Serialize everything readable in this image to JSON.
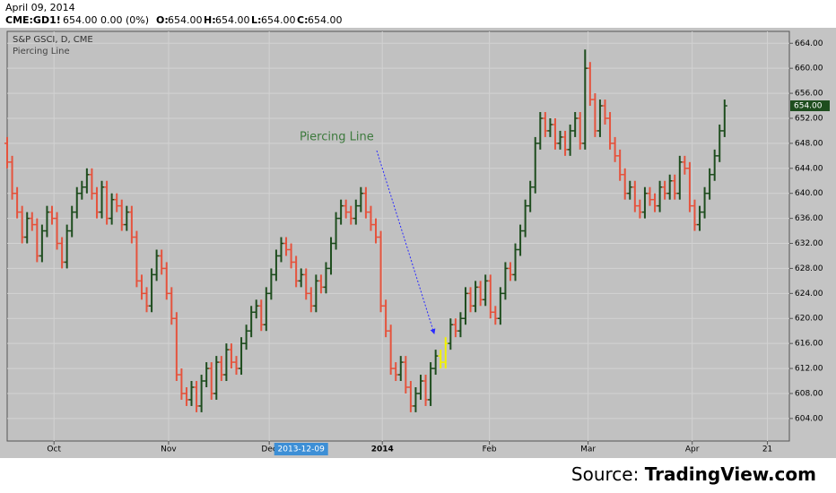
{
  "header": {
    "date": "April 09, 2014",
    "symbol": "CME:GD1!",
    "quote": "654.00 0.00 (0%)",
    "o_label": "O:",
    "o": "654.00",
    "h_label": "H:",
    "h": "654.00",
    "l_label": "L:",
    "l": "654.00",
    "c_label": "C:",
    "c": "654.00"
  },
  "chart_data": {
    "type": "ohlc",
    "title": "S&P GSCI, D, CME",
    "subtitle": "Piercing Line",
    "annotation": "Piercing Line",
    "up_color": "#1e4d1e",
    "down_color": "#e5533d",
    "highlight": {
      "color": "#f2f200",
      "indices": [
        87,
        88
      ]
    },
    "grid": true,
    "xlim": [
      0,
      157
    ],
    "xticks": [
      {
        "value": 9.4,
        "label": "Oct"
      },
      {
        "value": 32.4,
        "label": "Nov"
      },
      {
        "value": 52.6,
        "label": "Dec"
      },
      {
        "value": 75.3,
        "label": "2014"
      },
      {
        "value": 96.8,
        "label": "Feb"
      },
      {
        "value": 116.6,
        "label": "Mar"
      },
      {
        "value": 137.5,
        "label": "Apr"
      },
      {
        "value": 152.6,
        "label": "21"
      }
    ],
    "crosshair": {
      "value": 59,
      "label": "2013-12-09"
    },
    "ylim": [
      600.4,
      665.9
    ],
    "yticks": [
      {
        "value": 604,
        "label": "604.00"
      },
      {
        "value": 608,
        "label": "608.00"
      },
      {
        "value": 612,
        "label": "612.00"
      },
      {
        "value": 616,
        "label": "616.00"
      },
      {
        "value": 620,
        "label": "620.00"
      },
      {
        "value": 624,
        "label": "624.00"
      },
      {
        "value": 628,
        "label": "628.00"
      },
      {
        "value": 632,
        "label": "632.00"
      },
      {
        "value": 636,
        "label": "636.00"
      },
      {
        "value": 640,
        "label": "640.00"
      },
      {
        "value": 644,
        "label": "644.00"
      },
      {
        "value": 648,
        "label": "648.00"
      },
      {
        "value": 652,
        "label": "652.00"
      },
      {
        "value": 656,
        "label": "656.00"
      },
      {
        "value": 660,
        "label": "660.00"
      },
      {
        "value": 664,
        "label": "664.00"
      }
    ],
    "last_price": {
      "value": 654,
      "label": "654.00"
    },
    "open": [
      648,
      645,
      640,
      637,
      633,
      636,
      635,
      630,
      634,
      637,
      636,
      632,
      629,
      634,
      637,
      640,
      641,
      643,
      640,
      637,
      641,
      636,
      639,
      638,
      635,
      637,
      633,
      626,
      624,
      622,
      627,
      630,
      628,
      624,
      620,
      611,
      608,
      607,
      609,
      606,
      610,
      612,
      608,
      613,
      611,
      615,
      613,
      612,
      616,
      618,
      621,
      622,
      619,
      624,
      627,
      630,
      632,
      631,
      629,
      626,
      627,
      624,
      622,
      626,
      625,
      628,
      632,
      636,
      638,
      637,
      636,
      638,
      640,
      637,
      635,
      633,
      622,
      618,
      612,
      611,
      613,
      609,
      606,
      608,
      610,
      607,
      612,
      614,
      613,
      616,
      619,
      618,
      620,
      624,
      622,
      625,
      623,
      626,
      621,
      620,
      624,
      628,
      627,
      631,
      634,
      638,
      641,
      648,
      652,
      650,
      651,
      648,
      649,
      647,
      650,
      652,
      648,
      660,
      655,
      650,
      654,
      652,
      648,
      646,
      643,
      640,
      641,
      638,
      637,
      640,
      639,
      638,
      641,
      640,
      642,
      640,
      645,
      644,
      638,
      635,
      637,
      640,
      643,
      646,
      650
    ],
    "high": [
      649,
      646,
      641,
      638,
      637,
      637,
      636,
      635,
      638,
      638,
      637,
      633,
      635,
      638,
      641,
      642,
      644,
      644,
      641,
      642,
      642,
      640,
      640,
      639,
      638,
      638,
      634,
      627,
      625,
      628,
      631,
      631,
      629,
      625,
      621,
      612,
      609,
      610,
      610,
      611,
      613,
      613,
      614,
      614,
      616,
      616,
      614,
      617,
      619,
      622,
      623,
      623,
      625,
      628,
      631,
      633,
      633,
      632,
      630,
      628,
      628,
      625,
      627,
      627,
      629,
      633,
      637,
      639,
      639,
      638,
      639,
      641,
      641,
      638,
      636,
      634,
      623,
      619,
      613,
      614,
      614,
      610,
      609,
      611,
      611,
      613,
      615,
      615,
      617,
      620,
      620,
      621,
      625,
      625,
      626,
      626,
      627,
      627,
      622,
      625,
      629,
      629,
      632,
      635,
      639,
      642,
      649,
      653,
      653,
      652,
      652,
      650,
      650,
      651,
      653,
      653,
      663,
      661,
      656,
      655,
      655,
      653,
      649,
      647,
      644,
      642,
      642,
      639,
      641,
      641,
      640,
      642,
      642,
      643,
      643,
      646,
      646,
      645,
      639,
      638,
      641,
      644,
      647,
      651,
      655
    ],
    "low": [
      644,
      639,
      636,
      632,
      632,
      634,
      629,
      629,
      633,
      635,
      631,
      628,
      628,
      633,
      636,
      639,
      640,
      639,
      636,
      636,
      635,
      635,
      637,
      634,
      634,
      632,
      625,
      623,
      621,
      621,
      626,
      627,
      623,
      619,
      610,
      607,
      606,
      606,
      605,
      605,
      609,
      607,
      607,
      610,
      610,
      612,
      611,
      611,
      615,
      617,
      620,
      618,
      618,
      623,
      626,
      629,
      630,
      628,
      625,
      625,
      623,
      621,
      621,
      624,
      624,
      627,
      631,
      635,
      636,
      635,
      635,
      637,
      636,
      634,
      632,
      621,
      617,
      611,
      610,
      610,
      608,
      605,
      605,
      607,
      606,
      606,
      611,
      612,
      612,
      615,
      617,
      617,
      619,
      621,
      621,
      622,
      622,
      620,
      619,
      619,
      623,
      626,
      626,
      630,
      633,
      637,
      640,
      647,
      649,
      649,
      647,
      647,
      646,
      646,
      649,
      647,
      647,
      654,
      649,
      649,
      651,
      647,
      645,
      642,
      639,
      639,
      637,
      636,
      636,
      638,
      637,
      637,
      639,
      639,
      639,
      639,
      643,
      637,
      634,
      634,
      636,
      639,
      642,
      645,
      649
    ],
    "close": [
      645,
      640,
      637,
      633,
      636,
      635,
      630,
      634,
      637,
      636,
      632,
      629,
      634,
      637,
      640,
      641,
      643,
      640,
      637,
      641,
      636,
      639,
      638,
      635,
      637,
      633,
      626,
      624,
      622,
      627,
      630,
      628,
      624,
      620,
      611,
      608,
      607,
      609,
      606,
      610,
      612,
      608,
      613,
      611,
      615,
      613,
      612,
      616,
      618,
      621,
      622,
      619,
      624,
      627,
      630,
      632,
      631,
      629,
      626,
      627,
      624,
      622,
      626,
      625,
      628,
      632,
      636,
      638,
      637,
      636,
      638,
      640,
      637,
      635,
      633,
      622,
      618,
      612,
      611,
      613,
      609,
      606,
      608,
      610,
      607,
      612,
      614,
      613,
      616,
      619,
      618,
      620,
      624,
      622,
      625,
      623,
      626,
      621,
      620,
      624,
      628,
      627,
      631,
      634,
      638,
      641,
      648,
      652,
      650,
      651,
      648,
      649,
      647,
      650,
      652,
      648,
      660,
      655,
      650,
      654,
      652,
      648,
      646,
      643,
      640,
      641,
      638,
      637,
      640,
      639,
      638,
      641,
      640,
      642,
      640,
      645,
      644,
      638,
      635,
      637,
      640,
      643,
      646,
      650,
      654
    ]
  },
  "footer": {
    "source_label": "Source:",
    "source": "TradingView.com"
  }
}
